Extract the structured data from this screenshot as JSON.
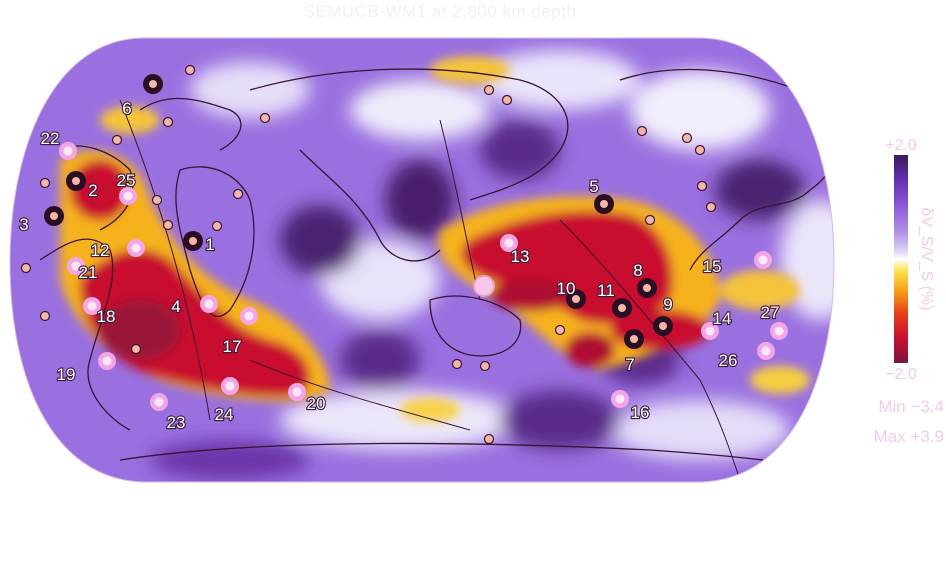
{
  "title": "SEMUCB-WM1 at 2,800 km depth",
  "colorbar": {
    "label": "δV_S/V_S (%)",
    "top_tick": "+2.0",
    "bottom_tick": "−2.0",
    "min_text": "Min −3.4",
    "max_text": "Max +3.9",
    "colors": [
      "#7a1540",
      "#c8102e",
      "#e8401c",
      "#f59a14",
      "#fde04a",
      "#ffffff",
      "#dcd2f6",
      "#b796ea",
      "#8d5cd8",
      "#6430b0",
      "#3a1a5a"
    ]
  },
  "hotspots": [
    {
      "n": "1",
      "kind": "dark"
    },
    {
      "n": "2",
      "kind": "dark"
    },
    {
      "n": "3",
      "kind": "dark"
    },
    {
      "n": "4",
      "kind": "pink"
    },
    {
      "n": "5",
      "kind": "dark"
    },
    {
      "n": "6",
      "kind": "dark"
    },
    {
      "n": "7",
      "kind": "dark"
    },
    {
      "n": "8",
      "kind": "dark"
    },
    {
      "n": "9",
      "kind": "dark"
    },
    {
      "n": "10",
      "kind": "dark"
    },
    {
      "n": "11",
      "kind": "dark"
    },
    {
      "n": "12",
      "kind": "pink"
    },
    {
      "n": "13",
      "kind": "pink"
    },
    {
      "n": "14",
      "kind": "pink"
    },
    {
      "n": "15",
      "kind": "pink"
    },
    {
      "n": "16",
      "kind": "pink"
    },
    {
      "n": "17",
      "kind": "pink"
    },
    {
      "n": "18",
      "kind": "pink"
    },
    {
      "n": "19",
      "kind": "pink"
    },
    {
      "n": "20",
      "kind": "pink"
    },
    {
      "n": "21",
      "kind": "pink"
    },
    {
      "n": "22",
      "kind": "pink"
    },
    {
      "n": "23",
      "kind": "pink"
    },
    {
      "n": "24",
      "kind": "pink"
    },
    {
      "n": "25",
      "kind": "pink"
    },
    {
      "n": "26",
      "kind": "pink"
    },
    {
      "n": "27",
      "kind": "pink"
    }
  ]
}
